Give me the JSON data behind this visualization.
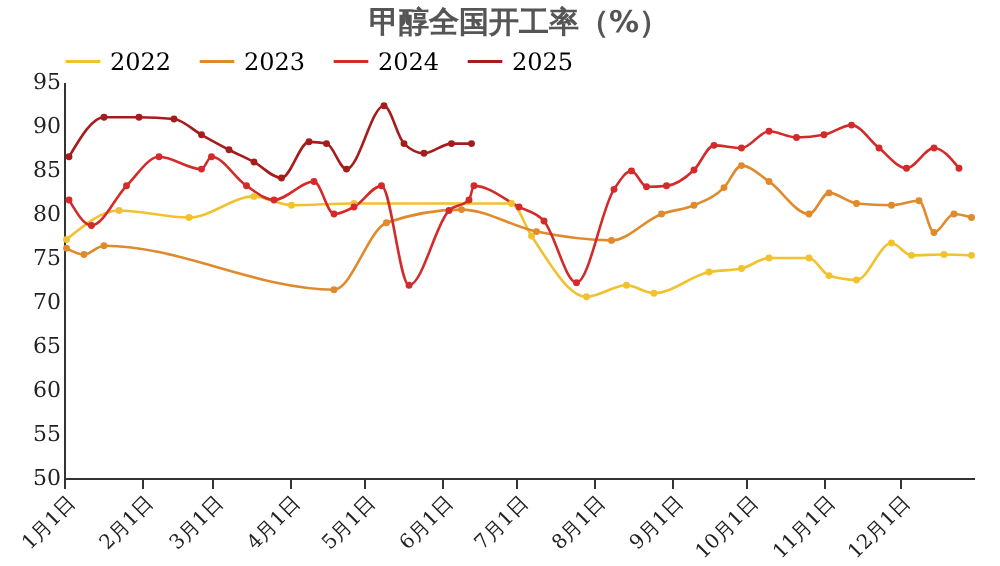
{
  "chart_data": {
    "type": "line",
    "title": "甲醇全国开工率（%）",
    "legend": "top",
    "marker": "circle",
    "grid": false,
    "xlim": [
      "--01-01",
      "--12-31"
    ],
    "xticks": [
      {
        "value": "--01-01",
        "label": "1月1日"
      },
      {
        "value": "--02-01",
        "label": "2月1日"
      },
      {
        "value": "--03-01",
        "label": "3月1日"
      },
      {
        "value": "--04-01",
        "label": "4月1日"
      },
      {
        "value": "--05-01",
        "label": "5月1日"
      },
      {
        "value": "--06-01",
        "label": "6月1日"
      },
      {
        "value": "--07-01",
        "label": "7月1日"
      },
      {
        "value": "--08-01",
        "label": "8月1日"
      },
      {
        "value": "--09-01",
        "label": "9月1日"
      },
      {
        "value": "--10-01",
        "label": "10月1日"
      },
      {
        "value": "--11-01",
        "label": "11月1日"
      },
      {
        "value": "--12-01",
        "label": "12月1日"
      }
    ],
    "ylim": [
      50,
      95
    ],
    "yticks": [
      50,
      55,
      60,
      65,
      70,
      75,
      80,
      85,
      90,
      95
    ],
    "series": [
      {
        "name": "2022",
        "color": "#f2c12e",
        "x": [
          "--01-02",
          "--01-23",
          "--02-20",
          "--03-18",
          "--04-02",
          "--04-27",
          "--06-29",
          "--07-07",
          "--07-29",
          "--08-14",
          "--08-25",
          "--09-16",
          "--09-29",
          "--10-10",
          "--10-26",
          "--11-03",
          "--11-14",
          "--11-28",
          "--12-06",
          "--12-19",
          "--12-30"
        ],
        "values": [
          77.1,
          80.4,
          79.6,
          82,
          81,
          81.2,
          81.2,
          77.5,
          70.6,
          71.9,
          71,
          73.4,
          73.8,
          75,
          75,
          73,
          72.5,
          76.7,
          75.3,
          75.4,
          75.3
        ]
      },
      {
        "name": "2023",
        "color": "#e08a2c",
        "x": [
          "--01-02",
          "--01-09",
          "--01-17",
          "--04-19",
          "--05-10",
          "--06-09",
          "--07-09",
          "--08-08",
          "--08-28",
          "--09-10",
          "--09-22",
          "--09-29",
          "--10-10",
          "--10-26",
          "--11-03",
          "--11-14",
          "--11-28",
          "--12-09",
          "--12-15",
          "--12-23",
          "--12-30"
        ],
        "values": [
          76.1,
          75.4,
          76.4,
          71.4,
          79,
          80.5,
          78,
          77,
          80,
          81,
          83,
          85.5,
          83.7,
          80,
          82.4,
          81.2,
          81,
          81.5,
          77.9,
          80,
          79.6
        ]
      },
      {
        "name": "2024",
        "color": "#d42a2a",
        "x": [
          "--01-03",
          "--01-12",
          "--01-26",
          "--02-08",
          "--02-25",
          "--03-01",
          "--03-15",
          "--03-26",
          "--04-11",
          "--04-19",
          "--04-27",
          "--05-08",
          "--05-19",
          "--06-04",
          "--06-12",
          "--06-14",
          "--07-02",
          "--07-12",
          "--07-25",
          "--08-09",
          "--08-16",
          "--08-22",
          "--08-30",
          "--09-10",
          "--09-18",
          "--09-29",
          "--10-10",
          "--10-21",
          "--11-01",
          "--11-12",
          "--11-23",
          "--12-04",
          "--12-15",
          "--12-25"
        ],
        "values": [
          81.6,
          78.7,
          83.2,
          86.5,
          85.1,
          86.5,
          83.2,
          81.6,
          83.7,
          80,
          80.8,
          83.2,
          71.9,
          80.4,
          81.6,
          83.2,
          80.8,
          79.2,
          72.2,
          82.8,
          84.9,
          83.1,
          83.2,
          85,
          87.8,
          87.5,
          89.4,
          88.7,
          89,
          90.1,
          87.5,
          85.2,
          87.5,
          85.2
        ]
      },
      {
        "name": "2025",
        "color": "#a51c1c",
        "x": [
          "--01-03",
          "--01-17",
          "--01-31",
          "--02-14",
          "--02-25",
          "--03-08",
          "--03-18",
          "--03-29",
          "--04-09",
          "--04-16",
          "--04-24",
          "--05-09",
          "--05-17",
          "--05-25",
          "--06-05",
          "--06-13"
        ],
        "values": [
          86.5,
          91,
          91,
          90.8,
          89,
          87.3,
          85.9,
          84.1,
          88.2,
          88,
          85.1,
          92.3,
          88,
          86.9,
          88,
          88
        ]
      }
    ]
  }
}
